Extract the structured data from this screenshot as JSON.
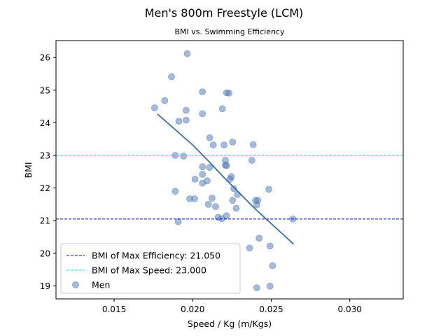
{
  "chart_data": {
    "type": "scatter",
    "title": "Men's 800m Freestyle (LCM)",
    "subtitle": "BMI vs. Swimming Efficiency",
    "xlabel": "Speed / Kg (m/Kgs)",
    "ylabel": "BMI",
    "xlim": [
      0.0113,
      0.0334
    ],
    "ylim": [
      18.6,
      26.52
    ],
    "xticks": [
      0.015,
      0.02,
      0.025,
      0.03
    ],
    "xtick_labels": [
      "0.015",
      "0.020",
      "0.025",
      "0.030"
    ],
    "yticks": [
      19,
      20,
      21,
      22,
      23,
      24,
      25,
      26
    ],
    "ytick_labels": [
      "19",
      "20",
      "21",
      "22",
      "23",
      "24",
      "25",
      "26"
    ],
    "grid": false,
    "legend_position": "lower-left",
    "series": [
      {
        "name": "Men",
        "kind": "scatter",
        "color": "#4c78b8",
        "points": [
          [
            0.01965,
            26.12
          ],
          [
            0.01865,
            25.41
          ],
          [
            0.02062,
            24.95
          ],
          [
            0.02216,
            24.92
          ],
          [
            0.02231,
            24.91
          ],
          [
            0.01822,
            24.68
          ],
          [
            0.01758,
            24.46
          ],
          [
            0.02189,
            24.43
          ],
          [
            0.01958,
            24.38
          ],
          [
            0.02062,
            24.28
          ],
          [
            0.01958,
            24.08
          ],
          [
            0.01912,
            24.05
          ],
          [
            0.02108,
            23.54
          ],
          [
            0.02254,
            23.41
          ],
          [
            0.02385,
            23.33
          ],
          [
            0.02131,
            23.32
          ],
          [
            0.022,
            23.32
          ],
          [
            0.01889,
            23.0
          ],
          [
            0.01942,
            22.98
          ],
          [
            0.02377,
            22.85
          ],
          [
            0.02208,
            22.85
          ],
          [
            0.02208,
            22.7
          ],
          [
            0.02216,
            22.69
          ],
          [
            0.02062,
            22.65
          ],
          [
            0.02108,
            22.63
          ],
          [
            0.02062,
            22.42
          ],
          [
            0.02246,
            22.35
          ],
          [
            0.02238,
            22.27
          ],
          [
            0.02015,
            22.27
          ],
          [
            0.02092,
            22.22
          ],
          [
            0.02062,
            22.15
          ],
          [
            0.02262,
            21.98
          ],
          [
            0.02485,
            21.96
          ],
          [
            0.01889,
            21.9
          ],
          [
            0.02285,
            21.8
          ],
          [
            0.01981,
            21.67
          ],
          [
            0.02012,
            21.67
          ],
          [
            0.02123,
            21.69
          ],
          [
            0.02254,
            21.62
          ],
          [
            0.024,
            21.62
          ],
          [
            0.02415,
            21.62
          ],
          [
            0.02408,
            21.48
          ],
          [
            0.021,
            21.5
          ],
          [
            0.02146,
            21.43
          ],
          [
            0.02277,
            21.38
          ],
          [
            0.02215,
            21.15
          ],
          [
            0.02162,
            21.1
          ],
          [
            0.02185,
            21.06
          ],
          [
            0.02638,
            21.05
          ],
          [
            0.01908,
            20.97
          ],
          [
            0.02423,
            20.46
          ],
          [
            0.02492,
            20.22
          ],
          [
            0.02362,
            20.16
          ],
          [
            0.02508,
            19.62
          ],
          [
            0.02492,
            18.99
          ],
          [
            0.02408,
            18.94
          ]
        ]
      },
      {
        "name": "",
        "kind": "trend-line",
        "color": "#3a6ea5",
        "points": [
          [
            0.01775,
            24.27
          ],
          [
            0.02,
            23.32
          ],
          [
            0.021,
            22.83
          ],
          [
            0.022,
            22.32
          ],
          [
            0.024,
            21.35
          ],
          [
            0.02642,
            20.28
          ]
        ]
      }
    ],
    "hlines": [
      {
        "name": "BMI of Max Efficiency: 21.050",
        "y": 21.05,
        "color": "#0000cc",
        "style": "dashed"
      },
      {
        "name": "BMI of Max Speed: 23.000",
        "y": 23.0,
        "color": "#00e5e5",
        "style": "dashed"
      }
    ]
  }
}
